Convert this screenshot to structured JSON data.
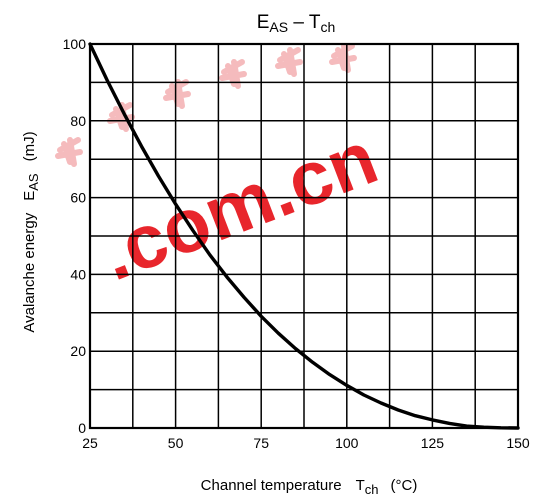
{
  "chart_data": {
    "type": "line",
    "title": "E_AS – T_ch",
    "title_parts": {
      "main": "E",
      "main_sub": "AS",
      "dash": " – ",
      "tail": "T",
      "tail_sub": "ch"
    },
    "xlabel": "Channel temperature",
    "xlabel_symbol": "T",
    "xlabel_symbol_sub": "ch",
    "xlabel_unit": "(°C)",
    "ylabel": "Avalanche energy",
    "ylabel_symbol": "E",
    "ylabel_symbol_sub": "AS",
    "ylabel_unit": "(mJ)",
    "xlim": [
      25,
      150
    ],
    "ylim": [
      0,
      100
    ],
    "x_ticks": [
      25,
      50,
      75,
      100,
      125,
      150
    ],
    "y_ticks": [
      0,
      20,
      40,
      60,
      80,
      100
    ],
    "x_grid_step": 12.5,
    "y_grid_step": 10,
    "grid": true,
    "series": [
      {
        "x": [
          25,
          30,
          35,
          40,
          45,
          50,
          55,
          60,
          65,
          70,
          75,
          80,
          85,
          90,
          95,
          100,
          105,
          110,
          115,
          120,
          125,
          130,
          135,
          140,
          145,
          150
        ],
        "values": [
          100,
          90.6,
          81.8,
          73.4,
          65.6,
          58.3,
          51.5,
          45.1,
          39.3,
          34.0,
          29.1,
          24.7,
          20.7,
          17.1,
          13.9,
          11.1,
          8.6,
          6.5,
          4.7,
          3.2,
          2.1,
          1.2,
          0.5,
          0.2,
          0.05,
          0
        ]
      }
    ]
  },
  "watermark": {
    "text": ".com.cn",
    "color": "#e8262c",
    "chars_color": "#f2a5a7"
  }
}
